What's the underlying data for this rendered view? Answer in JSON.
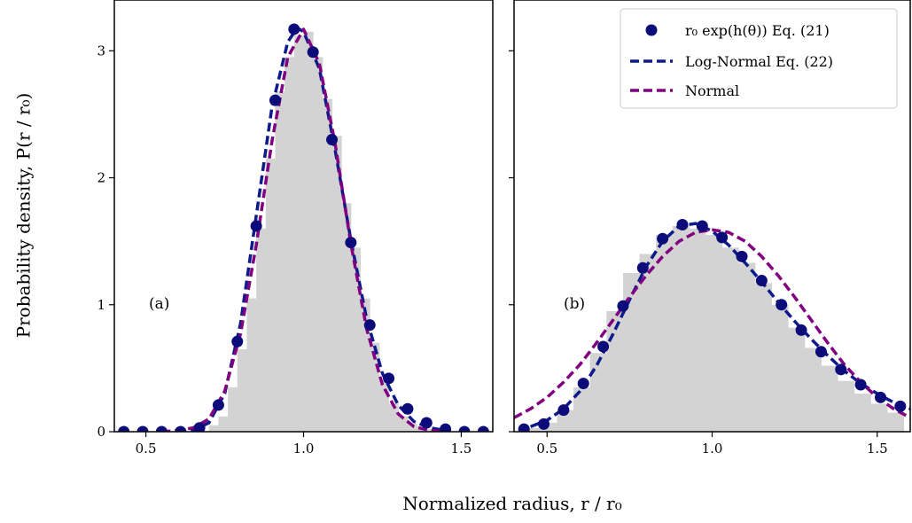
{
  "figure": {
    "xlabel": "Normalized radius, r / r₀",
    "ylabel": "Probability density, P(r / r₀)"
  },
  "colors": {
    "histogram": "#d3d3d3",
    "markers": "#0b0b7a",
    "lognormal": "#0d1b8a",
    "normal": "#800080"
  },
  "legend": {
    "items": [
      {
        "label": "r₀ exp(h(θ)) Eq. (21)",
        "style": "marker"
      },
      {
        "label": "Log-Normal Eq. (22)",
        "style": "dashed-navy"
      },
      {
        "label": "Normal",
        "style": "dashed-purple"
      }
    ]
  },
  "chart_data": [
    {
      "type": "line",
      "panel_label": "(a)",
      "xlim": [
        0.4,
        1.6
      ],
      "ylim": [
        0,
        3.4
      ],
      "xticks": [
        "0.5",
        "1.0",
        "1.5"
      ],
      "yticks": [
        "0",
        "1",
        "2",
        "3"
      ],
      "histogram": {
        "bin_left_edges": [
          0.7,
          0.73,
          0.76,
          0.79,
          0.82,
          0.85,
          0.88,
          0.91,
          0.94,
          0.97,
          1.0,
          1.03,
          1.06,
          1.09,
          1.12,
          1.15,
          1.18,
          1.21,
          1.24,
          1.27,
          1.3,
          1.33,
          1.36,
          1.39
        ],
        "bin_width": 0.03,
        "heights": [
          0.05,
          0.12,
          0.35,
          0.65,
          1.05,
          1.6,
          2.15,
          2.68,
          2.95,
          3.12,
          3.15,
          2.95,
          2.62,
          2.33,
          1.8,
          1.45,
          1.05,
          0.7,
          0.4,
          0.22,
          0.12,
          0.06,
          0.04,
          0.02
        ]
      },
      "series": [
        {
          "name": "r₀ exp(h(θ)) Eq. (21)",
          "kind": "markers",
          "x": [
            0.43,
            0.49,
            0.55,
            0.61,
            0.67,
            0.73,
            0.79,
            0.85,
            0.91,
            0.97,
            1.03,
            1.09,
            1.15,
            1.21,
            1.27,
            1.33,
            1.39,
            1.45,
            1.51,
            1.57
          ],
          "y": [
            0.0,
            0.0,
            0.0,
            0.0,
            0.03,
            0.21,
            0.71,
            1.62,
            2.61,
            3.17,
            2.99,
            2.3,
            1.49,
            0.84,
            0.42,
            0.18,
            0.07,
            0.02,
            0.0,
            0.0
          ]
        },
        {
          "name": "Log-Normal Eq. (22)",
          "kind": "dashed",
          "x": [
            0.6,
            0.65,
            0.7,
            0.75,
            0.8,
            0.85,
            0.9,
            0.95,
            0.98,
            1.0,
            1.05,
            1.1,
            1.15,
            1.2,
            1.25,
            1.3,
            1.35,
            1.4,
            1.45
          ],
          "y": [
            0.0,
            0.01,
            0.07,
            0.3,
            0.85,
            1.7,
            2.56,
            3.07,
            3.18,
            3.15,
            2.86,
            2.22,
            1.51,
            0.89,
            0.46,
            0.21,
            0.08,
            0.03,
            0.01
          ]
        },
        {
          "name": "Normal",
          "kind": "dashed",
          "x": [
            0.55,
            0.6,
            0.65,
            0.7,
            0.75,
            0.8,
            0.85,
            0.9,
            0.95,
            1.0,
            1.05,
            1.1,
            1.15,
            1.2,
            1.25,
            1.3,
            1.35,
            1.4,
            1.45
          ],
          "y": [
            0.0,
            0.01,
            0.03,
            0.1,
            0.32,
            0.77,
            1.47,
            2.29,
            2.95,
            3.17,
            2.9,
            2.27,
            1.48,
            0.81,
            0.37,
            0.14,
            0.04,
            0.01,
            0.0
          ]
        }
      ]
    },
    {
      "type": "line",
      "panel_label": "(b)",
      "xlim": [
        0.4,
        1.6
      ],
      "ylim": [
        0,
        3.4
      ],
      "xticks": [
        "0.5",
        "1.0",
        "1.5"
      ],
      "yticks": [],
      "histogram": {
        "bin_left_edges": [
          0.43,
          0.48,
          0.53,
          0.58,
          0.63,
          0.68,
          0.73,
          0.78,
          0.83,
          0.88,
          0.93,
          0.98,
          1.03,
          1.08,
          1.13,
          1.18,
          1.23,
          1.28,
          1.33,
          1.38,
          1.43,
          1.48,
          1.53
        ],
        "bin_width": 0.05,
        "heights": [
          0.03,
          0.07,
          0.17,
          0.35,
          0.62,
          0.95,
          1.25,
          1.4,
          1.55,
          1.62,
          1.6,
          1.55,
          1.45,
          1.33,
          1.17,
          1.0,
          0.82,
          0.66,
          0.52,
          0.4,
          0.3,
          0.22,
          0.15
        ]
      },
      "series": [
        {
          "name": "r₀ exp(h(θ)) Eq. (21)",
          "kind": "markers",
          "x": [
            0.43,
            0.49,
            0.55,
            0.61,
            0.67,
            0.73,
            0.79,
            0.85,
            0.91,
            0.97,
            1.03,
            1.09,
            1.15,
            1.21,
            1.27,
            1.33,
            1.39,
            1.45,
            1.51,
            1.57
          ],
          "y": [
            0.02,
            0.06,
            0.17,
            0.38,
            0.67,
            0.99,
            1.29,
            1.52,
            1.63,
            1.62,
            1.53,
            1.38,
            1.19,
            1.0,
            0.8,
            0.63,
            0.49,
            0.37,
            0.27,
            0.2
          ]
        },
        {
          "name": "Log-Normal Eq. (22)",
          "kind": "dashed",
          "x": [
            0.45,
            0.5,
            0.55,
            0.6,
            0.65,
            0.7,
            0.75,
            0.8,
            0.85,
            0.9,
            0.95,
            1.0,
            1.05,
            1.1,
            1.15,
            1.2,
            1.25,
            1.3,
            1.35,
            1.4,
            1.45,
            1.5,
            1.55,
            1.6
          ],
          "y": [
            0.04,
            0.09,
            0.18,
            0.32,
            0.52,
            0.77,
            1.04,
            1.3,
            1.5,
            1.62,
            1.64,
            1.58,
            1.47,
            1.33,
            1.18,
            1.02,
            0.87,
            0.73,
            0.6,
            0.48,
            0.38,
            0.3,
            0.23,
            0.18
          ]
        },
        {
          "name": "Normal",
          "kind": "dashed",
          "x": [
            0.4,
            0.45,
            0.5,
            0.55,
            0.6,
            0.65,
            0.7,
            0.75,
            0.8,
            0.85,
            0.9,
            0.95,
            1.0,
            1.05,
            1.1,
            1.15,
            1.2,
            1.25,
            1.3,
            1.35,
            1.4,
            1.45,
            1.5,
            1.55,
            1.6
          ],
          "y": [
            0.11,
            0.18,
            0.27,
            0.39,
            0.53,
            0.7,
            0.88,
            1.06,
            1.23,
            1.38,
            1.5,
            1.57,
            1.59,
            1.57,
            1.5,
            1.38,
            1.23,
            1.06,
            0.88,
            0.7,
            0.53,
            0.39,
            0.27,
            0.18,
            0.11
          ]
        }
      ]
    }
  ]
}
